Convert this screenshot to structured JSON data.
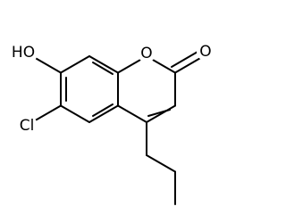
{
  "atoms": {
    "hydroxyl": "HO",
    "ring_oxygen": "O",
    "carbonyl_oxygen": "O",
    "chlorine": "Cl"
  }
}
